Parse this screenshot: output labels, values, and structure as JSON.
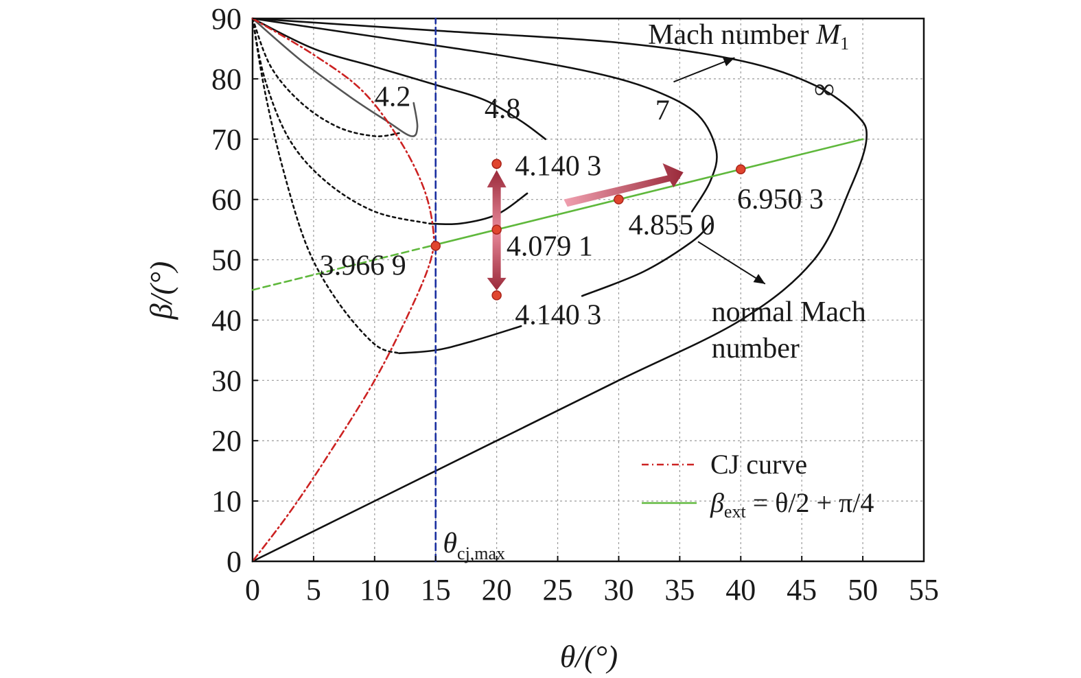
{
  "chart_data": {
    "type": "line",
    "xlabel": "θ/(°)",
    "ylabel": "β/(°)",
    "xlim": [
      0,
      55
    ],
    "ylim": [
      0,
      90
    ],
    "xticks": [
      "0",
      "5",
      "10",
      "15",
      "20",
      "25",
      "30",
      "35",
      "40",
      "45",
      "50",
      "55"
    ],
    "yticks": [
      "0",
      "10",
      "20",
      "30",
      "40",
      "50",
      "60",
      "70",
      "80",
      "90"
    ],
    "grid": true,
    "legend": {
      "placement": "bottom-right",
      "entries": [
        {
          "label": "CJ curve",
          "color": "#cc2222",
          "style": "dash-dot"
        },
        {
          "label_main": "β",
          "label_sub": "ext",
          "label_rest": " = θ/2 + π/4",
          "color": "#5fb83c",
          "style": "solid"
        }
      ]
    },
    "curves": [
      {
        "name": "4.2",
        "color": "#555555",
        "points": [
          [
            0,
            90
          ],
          [
            4,
            83
          ],
          [
            8,
            77
          ],
          [
            11,
            73
          ],
          [
            13,
            70.5
          ],
          [
            13.5,
            72
          ],
          [
            13.2,
            76
          ]
        ]
      },
      {
        "name": "4.2-weak-dotted",
        "color": "#111111",
        "dotted": true,
        "points": [
          [
            0,
            90
          ],
          [
            1.5,
            82
          ],
          [
            4,
            76
          ],
          [
            7,
            72
          ],
          [
            10,
            70.5
          ],
          [
            12,
            71
          ]
        ]
      },
      {
        "name": "4.8",
        "color": "#111111",
        "points": [
          [
            0,
            90
          ],
          [
            5,
            85
          ],
          [
            10,
            82
          ],
          [
            15,
            79
          ],
          [
            19,
            76.5
          ],
          [
            22,
            73
          ],
          [
            24,
            70
          ]
        ]
      },
      {
        "name": "4.140 3 upper",
        "color": "#111111",
        "points": [
          [
            14.5,
            56
          ],
          [
            17,
            56
          ],
          [
            20,
            57.5
          ],
          [
            22.5,
            61
          ]
        ]
      },
      {
        "name": "4.140 3 upper-dotted",
        "color": "#111111",
        "dotted": true,
        "points": [
          [
            0,
            90
          ],
          [
            1,
            80
          ],
          [
            3,
            70
          ],
          [
            6,
            63
          ],
          [
            10,
            58
          ],
          [
            14.5,
            56
          ]
        ]
      },
      {
        "name": "7",
        "color": "#111111",
        "points": [
          [
            0,
            90
          ],
          [
            10,
            87
          ],
          [
            20,
            84
          ],
          [
            28,
            81
          ],
          [
            33,
            78
          ],
          [
            36.5,
            74
          ],
          [
            38,
            68
          ],
          [
            37.5,
            63
          ],
          [
            36,
            58
          ]
        ]
      },
      {
        "name": "∞",
        "color": "#111111",
        "points": [
          [
            0,
            90
          ],
          [
            15,
            88
          ],
          [
            30,
            86
          ],
          [
            40,
            83
          ],
          [
            46,
            79
          ],
          [
            49.5,
            74
          ],
          [
            50.3,
            70
          ],
          [
            49,
            62
          ],
          [
            46,
            50
          ],
          [
            40,
            40
          ],
          [
            30,
            30
          ],
          [
            20,
            20
          ],
          [
            10,
            10
          ],
          [
            0,
            0
          ]
        ]
      },
      {
        "name": "4.140 3 lower",
        "color": "#111111",
        "points": [
          [
            12,
            34.5
          ],
          [
            15,
            35
          ],
          [
            18,
            36.5
          ],
          [
            22,
            39
          ]
        ]
      },
      {
        "name": "4.140 3 lower-dotted",
        "color": "#111111",
        "dotted": true,
        "points": [
          [
            0,
            90
          ],
          [
            1,
            78
          ],
          [
            2.5,
            65
          ],
          [
            4.5,
            52
          ],
          [
            7,
            43
          ],
          [
            10,
            36
          ],
          [
            12,
            34.5
          ]
        ]
      },
      {
        "name": "4.855 0 bottom",
        "color": "#111111",
        "points": [
          [
            27,
            44
          ],
          [
            32,
            48
          ],
          [
            36,
            53
          ],
          [
            37.5,
            56
          ]
        ]
      },
      {
        "name": "CJ curve",
        "color": "#cc2222",
        "dashdot": true,
        "points": [
          [
            0,
            90
          ],
          [
            5,
            84
          ],
          [
            9,
            78
          ],
          [
            12,
            70
          ],
          [
            14,
            62
          ],
          [
            14.8,
            55
          ],
          [
            14.6,
            50
          ],
          [
            13,
            42
          ],
          [
            10,
            30
          ],
          [
            6,
            17
          ],
          [
            3,
            8
          ],
          [
            0,
            0
          ]
        ]
      },
      {
        "name": "β_ext line solid",
        "color": "#5fb83c",
        "points": [
          [
            15,
            52.5
          ],
          [
            50,
            70
          ]
        ]
      },
      {
        "name": "β_ext line dashed",
        "color": "#5fb83c",
        "dashed": true,
        "points": [
          [
            0,
            45
          ],
          [
            15,
            52.5
          ]
        ]
      },
      {
        "name": "θcj,max",
        "color": "#1a2fa0",
        "dashed": true,
        "points": [
          [
            15,
            0
          ],
          [
            15,
            90
          ]
        ]
      }
    ],
    "points": [
      {
        "x": 15,
        "y": 52.3
      },
      {
        "x": 20,
        "y": 65.9
      },
      {
        "x": 20,
        "y": 55
      },
      {
        "x": 20,
        "y": 44.1
      },
      {
        "x": 30,
        "y": 60
      },
      {
        "x": 40,
        "y": 65
      }
    ],
    "annotations": [
      {
        "text": "4.2",
        "x": 10,
        "y": 75.5
      },
      {
        "text": "4.8",
        "x": 19,
        "y": 73.5
      },
      {
        "text": "7",
        "x": 33,
        "y": 73.2
      },
      {
        "text": "∞",
        "x": 46,
        "y": 76.8
      },
      {
        "text": "4.140 3",
        "x": 21.5,
        "y": 64
      },
      {
        "text": "4.079 1",
        "x": 20.8,
        "y": 50.7
      },
      {
        "text": "4.140 3",
        "x": 21.5,
        "y": 39.3
      },
      {
        "text": "3.966 9",
        "x": 5.5,
        "y": 47.5
      },
      {
        "text": "4.855 0",
        "x": 30.8,
        "y": 54.2
      },
      {
        "text": "6.950 3",
        "x": 39.7,
        "y": 58.5
      },
      {
        "text": "Mach number",
        "sub": "1",
        "italic": "M",
        "x": 32.4,
        "y": 85.8
      },
      {
        "text": "normal Mach",
        "x": 37.6,
        "y": 39.8
      },
      {
        "text": "number",
        "x": 37.6,
        "y": 33.8
      }
    ],
    "vline_label": {
      "main": "θ",
      "sub": "cj,max",
      "x": 15.6,
      "y": 1.5
    }
  }
}
